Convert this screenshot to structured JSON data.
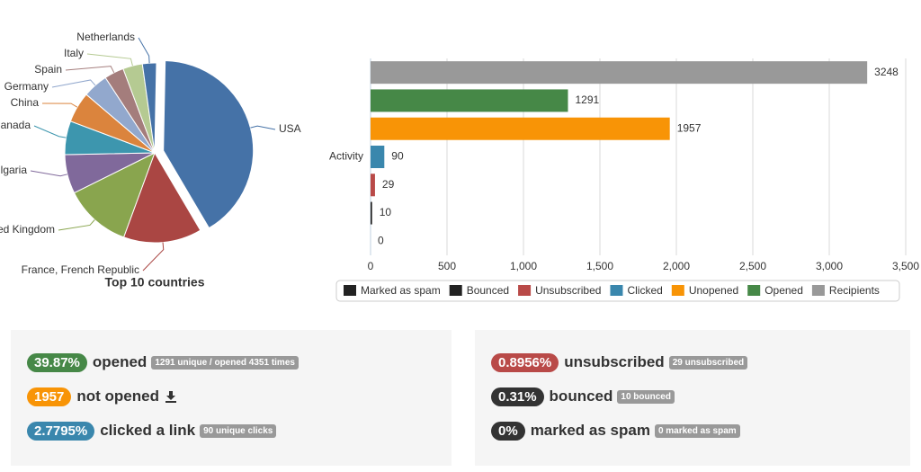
{
  "chart_data": [
    {
      "type": "pie",
      "title": "Top 10 countries",
      "categories": [
        "USA",
        "France, French Republic",
        "United Kingdom",
        "Bulgaria",
        "Canada",
        "China",
        "Germany",
        "Spain",
        "Italy",
        "Netherlands"
      ],
      "values": [
        41,
        14,
        12,
        7,
        6,
        5.5,
        4.5,
        3.5,
        3.5,
        2.5
      ],
      "colors": [
        "#4572a7",
        "#aa4643",
        "#89a54e",
        "#80699b",
        "#3d96ae",
        "#db843d",
        "#92a8cd",
        "#a47d7c",
        "#b5ca92",
        "#4572a7"
      ]
    },
    {
      "type": "bar",
      "orientation": "horizontal",
      "categories": [
        "Activity"
      ],
      "series": [
        {
          "name": "Marked as spam",
          "color": "#222222",
          "values": [
            0
          ]
        },
        {
          "name": "Bounced",
          "color": "#222222",
          "values": [
            10
          ]
        },
        {
          "name": "Unsubscribed",
          "color": "#b94a48",
          "values": [
            29
          ]
        },
        {
          "name": "Clicked",
          "color": "#3a87ad",
          "values": [
            90
          ]
        },
        {
          "name": "Unopened",
          "color": "#f89406",
          "values": [
            1957
          ]
        },
        {
          "name": "Opened",
          "color": "#468847",
          "values": [
            1291
          ]
        },
        {
          "name": "Recipients",
          "color": "#999999",
          "values": [
            3248
          ]
        }
      ],
      "xlim": [
        0,
        3500
      ],
      "xticks": [
        0,
        500,
        {
          "value": 1000,
          "label": "1,000"
        },
        {
          "value": 1500,
          "label": "1,500"
        },
        {
          "value": 2000,
          "label": "2,000"
        },
        {
          "value": 2500,
          "label": "2,500"
        },
        {
          "value": 3000,
          "label": "3,000"
        },
        {
          "value": 3500,
          "label": "3,500"
        }
      ],
      "grid": true,
      "legend": "bottom"
    }
  ],
  "stats": {
    "left": [
      {
        "badge": "39.87%",
        "color": "#468847",
        "label": "opened",
        "note": "1291 unique / opened 4351 times"
      },
      {
        "badge": "1957",
        "color": "#f89406",
        "label": "not opened"
      },
      {
        "badge": "2.7795%",
        "color": "#3a87ad",
        "label": "clicked a link",
        "note": "90 unique clicks"
      }
    ],
    "right": [
      {
        "badge": "0.8956%",
        "color": "#b94a48",
        "label": "unsubscribed",
        "note": "29 unsubscribed"
      },
      {
        "badge": "0.31%",
        "color": "#333333",
        "label": "bounced",
        "note": "10 bounced"
      },
      {
        "badge": "0%",
        "color": "#333333",
        "label": "marked as spam",
        "note": "0 marked as spam"
      }
    ]
  }
}
